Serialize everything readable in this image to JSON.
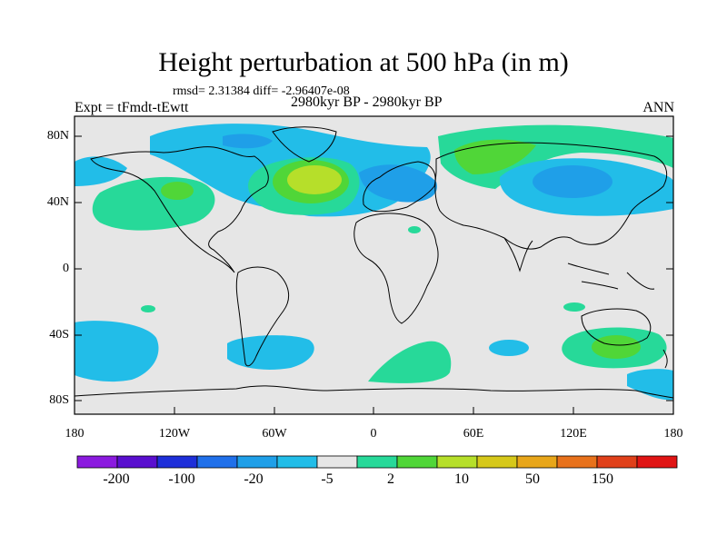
{
  "title": "Height perturbation at 500 hPa (in m)",
  "stats": "rmsd= 2.31384 diff= -2.96407e-08",
  "experiment": "Expt = tFmdt-tEwtt",
  "period": "2980kyr BP - 2980kyr BP",
  "season": "ANN",
  "lat_labels": [
    "80N",
    "40N",
    "0",
    "40S",
    "80S"
  ],
  "lon_labels": [
    "180",
    "120W",
    "60W",
    "0",
    "60E",
    "120E",
    "180"
  ],
  "colorbar": {
    "colors": [
      "#8b1adf",
      "#5a0fcf",
      "#1e2fd9",
      "#2070ea",
      "#1f9fe8",
      "#22bde8",
      "#e6e6e6",
      "#27d999",
      "#50d638",
      "#b6df2a",
      "#d6c81a",
      "#e8a61a",
      "#e8721c",
      "#e0401a",
      "#e01414"
    ],
    "labels": [
      "-200",
      "-100",
      "-20",
      "-5",
      "2",
      "10",
      "50",
      "150"
    ]
  },
  "map": {
    "background": "#e6e6e6",
    "colors": {
      "neg_light": "#22bde8",
      "neg_mid": "#1f9fe8",
      "pos_light": "#27d999",
      "pos_mid": "#50d638",
      "pos_high": "#b6df2a"
    }
  }
}
